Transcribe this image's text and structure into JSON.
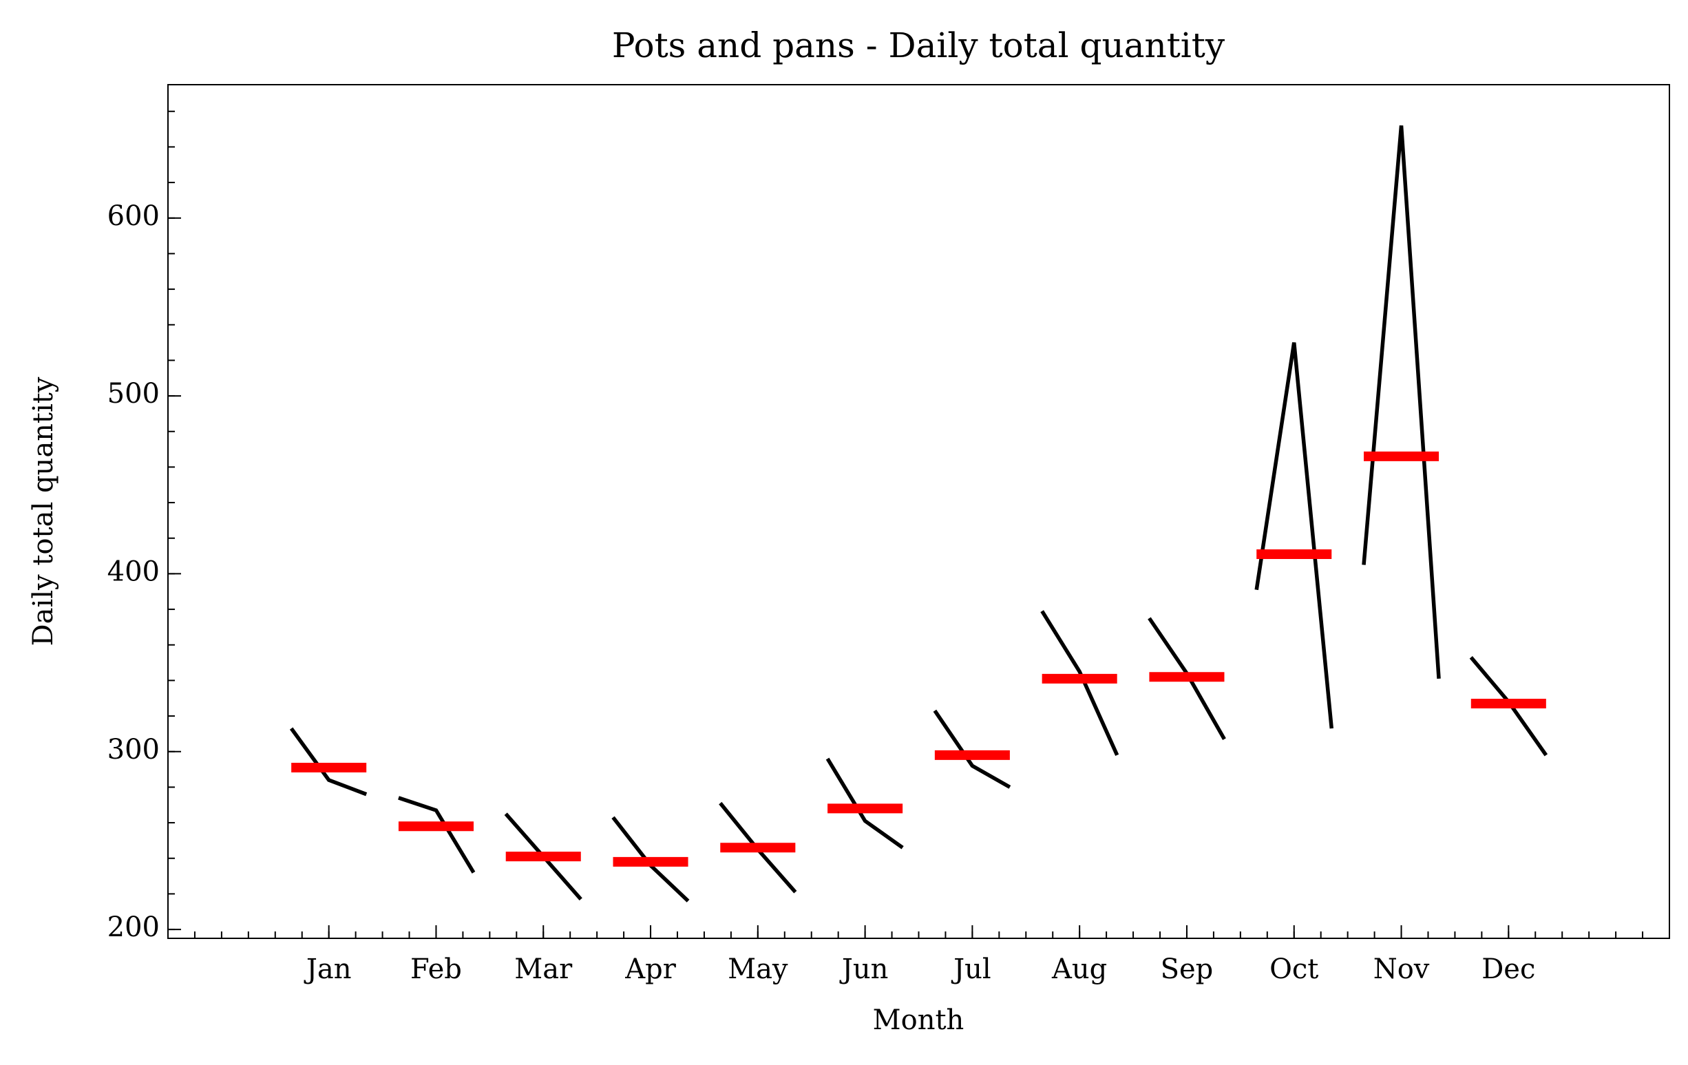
{
  "chart_data": {
    "type": "month_plot",
    "title": "Pots and pans - Daily total quantity",
    "xlabel": "Month",
    "ylabel": "Daily total quantity",
    "categories": [
      "Jan",
      "Feb",
      "Mar",
      "Apr",
      "May",
      "Jun",
      "Jul",
      "Aug",
      "Sep",
      "Oct",
      "Nov",
      "Dec"
    ],
    "subseries": [
      [
        313,
        284,
        276
      ],
      [
        274,
        267,
        232
      ],
      [
        265,
        241,
        217
      ],
      [
        263,
        236,
        216
      ],
      [
        271,
        245,
        221
      ],
      [
        296,
        261,
        246
      ],
      [
        323,
        292,
        280
      ],
      [
        379,
        345,
        298
      ],
      [
        375,
        344,
        307
      ],
      [
        391,
        530,
        313
      ],
      [
        405,
        652,
        341
      ],
      [
        353,
        328,
        298
      ]
    ],
    "means": [
      291,
      258,
      241,
      238,
      246,
      268,
      298,
      341,
      342,
      411,
      466,
      327
    ],
    "line_color": "#000000",
    "mean_color": "#ff0000",
    "xlim": [
      -1.5,
      12.5
    ],
    "ylim": [
      195,
      675
    ],
    "yticks": [
      200,
      300,
      400,
      500,
      600
    ]
  }
}
